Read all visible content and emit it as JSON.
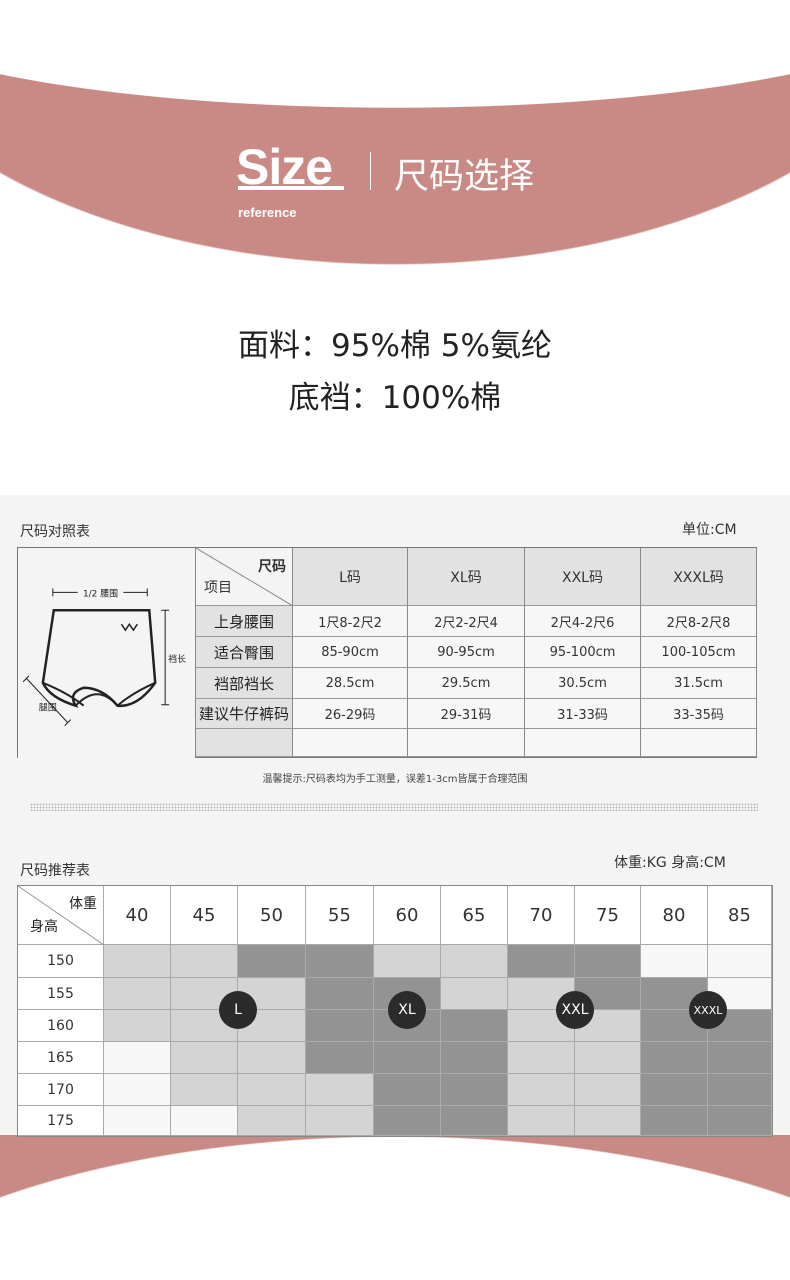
{
  "banner": {
    "title_en": "Size",
    "subtitle_en": "reference",
    "title_cn": "尺码选择"
  },
  "fabric": {
    "line1": "面料：95%棉  5%氨纶",
    "line2": "底裆：100%棉"
  },
  "colors": {
    "accent": "#c98a85",
    "light_cell": "#d4d4d4",
    "dark_cell": "#939393",
    "white_cell": "#f7f7f7"
  },
  "size_table": {
    "title": "尺码对照表",
    "unit": "单位:CM",
    "diagram_labels": {
      "waist": "1/2 腰围",
      "length": "裆长",
      "leg": "腿围"
    },
    "corner_top": "尺码",
    "corner_bottom": "项目",
    "columns": [
      "L码",
      "XL码",
      "XXL码",
      "XXXL码"
    ],
    "rows": [
      {
        "label": "上身腰围",
        "values": [
          "1尺8-2尺2",
          "2尺2-2尺4",
          "2尺4-2尺6",
          "2尺8-2尺8"
        ]
      },
      {
        "label": "适合臀围",
        "values": [
          "85-90cm",
          "90-95cm",
          "95-100cm",
          "100-105cm"
        ]
      },
      {
        "label": "裆部裆长",
        "values": [
          "28.5cm",
          "29.5cm",
          "30.5cm",
          "31.5cm"
        ]
      },
      {
        "label": "建议牛仔裤码",
        "values": [
          "26-29码",
          "29-31码",
          "31-33码",
          "33-35码"
        ]
      },
      {
        "label": "",
        "values": [
          "",
          "",
          "",
          ""
        ]
      }
    ],
    "note": "温馨提示:尺码表均为手工测量，误差1-3cm皆属于合理范围"
  },
  "recommend": {
    "title": "尺码推荐表",
    "unit": "体重:KG  身高:CM",
    "corner_top": "体重",
    "corner_bottom": "身高",
    "weights": [
      "40",
      "45",
      "50",
      "55",
      "60",
      "65",
      "70",
      "75",
      "80",
      "85"
    ],
    "heights": [
      "150",
      "155",
      "160",
      "165",
      "170",
      "175"
    ],
    "grid": [
      [
        "l",
        "l",
        "d",
        "d",
        "l",
        "l",
        "d",
        "d",
        "w",
        "w"
      ],
      [
        "l",
        "l",
        "l",
        "d",
        "d",
        "l",
        "l",
        "d",
        "d",
        "w"
      ],
      [
        "l",
        "l",
        "l",
        "d",
        "d",
        "d",
        "l",
        "l",
        "d",
        "d"
      ],
      [
        "w",
        "l",
        "l",
        "d",
        "d",
        "d",
        "l",
        "l",
        "d",
        "d"
      ],
      [
        "w",
        "l",
        "l",
        "l",
        "d",
        "d",
        "l",
        "l",
        "d",
        "d"
      ],
      [
        "w",
        "w",
        "l",
        "l",
        "d",
        "d",
        "l",
        "l",
        "d",
        "d"
      ]
    ],
    "badges": [
      "L",
      "XL",
      "XXL",
      "XXXL"
    ]
  }
}
